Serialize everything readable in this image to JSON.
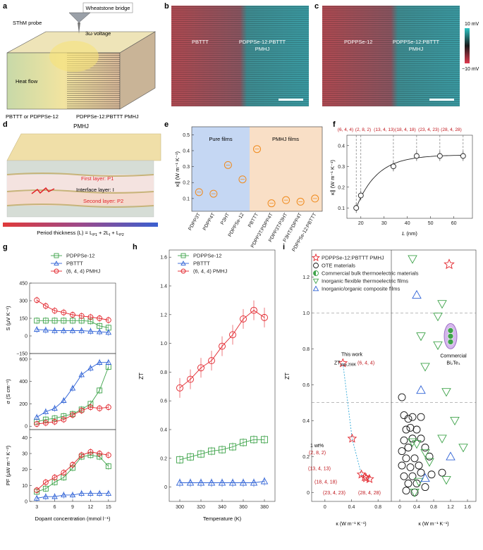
{
  "colors": {
    "green": "#3ea34a",
    "blue": "#2f62d6",
    "red": "#e2232a",
    "orange": "#f08a1c",
    "darkred": "#c0161c",
    "purple": "#a070c8"
  },
  "panels": {
    "a": {
      "label": "a",
      "wheatstone": "Wheatstone bridge",
      "probe": "SThM probe",
      "voltage": "3ω voltage",
      "heat": "Heat flow",
      "left": "PBTTT or PDPPSe-12",
      "right": "PDPPSe-12:PBTTT PMHJ"
    },
    "b": {
      "label": "b",
      "left": "PBTTT",
      "right1": "PDPPSe-12:PBTTT",
      "right2": "PMHJ"
    },
    "c": {
      "label": "c",
      "left": "PDPPSe-12",
      "right1": "PDPPSe-12:PBTTT",
      "right2": "PMHJ"
    },
    "colorbar": {
      "top": "10 mV",
      "bottom": "−10 mV"
    },
    "d": {
      "label": "d",
      "title": "PMHJ",
      "layer1": "First layer: P1",
      "layeri": "Interface layer: I",
      "layer2": "Second layer: P2",
      "period": "Period thickness (L) = L",
      "period_sub1": "P1",
      "period_mid": " + 2L",
      "period_sub2": "I",
      "period_plus": " + L",
      "period_sub3": "P2"
    },
    "e": {
      "label": "e",
      "region1": "Pure films",
      "region2": "PMHJ films",
      "yticks": [
        "0.1",
        "0.2",
        "0.3",
        "0.4",
        "0.5"
      ]
    },
    "f": {
      "label": "f",
      "top_labels": [
        "(6, 4, 4)",
        "(2, 8, 2)",
        "(13, 4, 13)",
        "(18, 4, 18)",
        "(23, 4, 23)",
        "(28, 4, 28)"
      ],
      "xlabel": "L",
      "xunit": " (nm)",
      "xticks": [
        "20",
        "30",
        "40",
        "50",
        "60"
      ],
      "yticks": [
        "0.1",
        "0.2",
        "0.3",
        "0.4"
      ]
    },
    "g": {
      "label": "g",
      "legend": [
        "PDPPSe-12",
        "PBTTT",
        "(6, 4, 4) PMHJ"
      ],
      "xlabel": "Dopant concentration (mmol l⁻¹)",
      "xticks": [
        "3",
        "6",
        "9",
        "12",
        "15"
      ],
      "s_ticks": [
        "450",
        "300",
        "150",
        "0",
        "−150"
      ],
      "sigma_ticks": [
        "600",
        "400",
        "200",
        "0"
      ],
      "pf_ticks": [
        "40",
        "30",
        "20",
        "10",
        "0"
      ]
    },
    "h": {
      "label": "h",
      "legend": [
        "PDPPSe-12",
        "PBTTT",
        "(6, 4, 4) PMHJ"
      ],
      "ylabel": "ZT",
      "xlabel": "Temperature (K)",
      "xticks": [
        "300",
        "320",
        "340",
        "360",
        "380"
      ],
      "yticks": [
        "0",
        "0.2",
        "0.4",
        "0.6",
        "0.8",
        "1.0",
        "1.2",
        "1.4",
        "1.6"
      ]
    },
    "i": {
      "label": "i",
      "legend": [
        "PDPPSe-12:PBTTT PMHJ",
        "OTE materials",
        "Commercial bulk thermoelectric materials",
        "Inorganic flexible thermoelectric films",
        "Inorganic/organic composite films"
      ],
      "ylabel": "ZT",
      "yticks": [
        "0",
        "0.2",
        "0.4",
        "0.6",
        "0.8",
        "1.0",
        "1.2"
      ],
      "xticks_left": [
        "0",
        "0.4",
        "0.8"
      ],
      "xticks_right": [
        "0",
        "0.4",
        "0.8",
        "1.2",
        "1.6"
      ],
      "this_work": "This work",
      "zt_label": "ZT",
      "zt_sub": "max,298K",
      "zt_val": "(6, 4, 4)",
      "wt_label": "1 wt%",
      "wt_val": "(2, 8, 2)",
      "pt_labels": [
        "(13, 4, 13)",
        "(18, 4, 18)",
        "(23, 4, 23)",
        "(28, 4, 28)"
      ],
      "commercial1": "Commercial",
      "commercial2": "Bi₂Te₃"
    }
  },
  "chart_data": [
    {
      "type": "scatter",
      "panel": "e",
      "ylabel": "κ∥ (W m⁻¹ K⁻¹)",
      "categories": [
        "PDPP3T",
        "PDPP4T",
        "P3HT",
        "PDPPSe-12",
        "PBTTT",
        "PDPP3T:PDPP4T",
        "PDPP3T:P3HT",
        "P3HT:PDPP4T",
        "PDPPSe-12:PBTTT"
      ],
      "values": [
        0.14,
        0.13,
        0.31,
        0.22,
        0.41,
        0.07,
        0.09,
        0.08,
        0.1
      ],
      "ylim": [
        0.02,
        0.55
      ]
    },
    {
      "type": "line",
      "panel": "f",
      "ylabel": "κ∥ (W m⁻¹ K⁻¹)",
      "x": [
        18,
        20,
        34,
        44,
        54,
        64
      ],
      "y": [
        0.1,
        0.16,
        0.3,
        0.35,
        0.35,
        0.35
      ],
      "xlim": [
        14,
        68
      ],
      "ylim": [
        0.05,
        0.45
      ]
    },
    {
      "type": "line",
      "panel": "g",
      "ylabel": "S (μV K⁻¹)",
      "x": [
        3,
        4.5,
        6,
        7.5,
        9,
        10.5,
        12,
        13.5,
        15
      ],
      "series": [
        {
          "name": "PDPPSe-12",
          "values": [
            130,
            130,
            130,
            130,
            130,
            130,
            125,
            85,
            70
          ]
        },
        {
          "name": "PBTTT",
          "values": [
            55,
            50,
            45,
            45,
            45,
            45,
            40,
            35,
            30
          ]
        },
        {
          "name": "(6, 4, 4) PMHJ",
          "values": [
            305,
            255,
            215,
            200,
            180,
            170,
            160,
            150,
            135
          ]
        }
      ],
      "ylim": [
        -150,
        450
      ]
    },
    {
      "type": "line",
      "panel": "g",
      "ylabel": "σ (S cm⁻¹)",
      "x": [
        3,
        4.5,
        6,
        7.5,
        9,
        10.5,
        12,
        13.5,
        15
      ],
      "series": [
        {
          "name": "PDPPSe-12",
          "values": [
            40,
            60,
            70,
            90,
            110,
            150,
            200,
            320,
            530
          ]
        },
        {
          "name": "PBTTT",
          "values": [
            80,
            130,
            160,
            230,
            340,
            460,
            520,
            570,
            570
          ]
        },
        {
          "name": "(6, 4, 4) PMHJ",
          "values": [
            20,
            30,
            40,
            60,
            100,
            140,
            170,
            160,
            170
          ]
        }
      ],
      "ylim": [
        -30,
        650
      ]
    },
    {
      "type": "line",
      "panel": "g",
      "ylabel": "PF (μW m⁻¹ K⁻²)",
      "x": [
        3,
        4.5,
        6,
        7.5,
        9,
        10.5,
        12,
        13.5,
        15
      ],
      "series": [
        {
          "name": "PDPPSe-12",
          "values": [
            6,
            8,
            12,
            15,
            21,
            28,
            29,
            28,
            22
          ]
        },
        {
          "name": "PBTTT",
          "values": [
            2,
            3,
            3,
            4,
            4,
            5,
            5,
            5,
            5
          ]
        },
        {
          "name": "(6, 4, 4) PMHJ",
          "values": [
            7,
            12,
            15,
            18,
            23,
            29,
            31,
            30,
            29
          ]
        }
      ],
      "ylim": [
        0,
        45
      ]
    },
    {
      "type": "line",
      "panel": "h",
      "x": [
        300,
        310,
        320,
        330,
        340,
        350,
        360,
        370,
        380
      ],
      "series": [
        {
          "name": "PDPPSe-12",
          "values": [
            0.19,
            0.21,
            0.23,
            0.25,
            0.26,
            0.28,
            0.31,
            0.33,
            0.33
          ]
        },
        {
          "name": "PBTTT",
          "values": [
            0.03,
            0.03,
            0.03,
            0.03,
            0.03,
            0.03,
            0.03,
            0.03,
            0.04
          ]
        },
        {
          "name": "(6, 4, 4) PMHJ",
          "values": [
            0.69,
            0.75,
            0.83,
            0.88,
            0.98,
            1.06,
            1.17,
            1.23,
            1.18
          ]
        }
      ],
      "xlim": [
        290,
        390
      ],
      "ylim": [
        -0.1,
        1.65
      ]
    },
    {
      "type": "scatter",
      "panel": "i",
      "xlim_left": [
        -0.2,
        1.0
      ],
      "xlim_right": [
        -0.2,
        1.8
      ],
      "ylim": [
        -0.05,
        1.35
      ],
      "pmhj": [
        {
          "x": 0.27,
          "y": 0.72
        },
        {
          "x": 0.41,
          "y": 0.3
        },
        {
          "x": 0.55,
          "y": 0.1
        },
        {
          "x": 0.6,
          "y": 0.085
        },
        {
          "x": 0.62,
          "y": 0.08
        },
        {
          "x": 0.67,
          "y": 0.075
        }
      ],
      "ote": [
        {
          "x": 0.05,
          "y": 0.53
        },
        {
          "x": 0.1,
          "y": 0.43
        },
        {
          "x": 0.2,
          "y": 0.41
        },
        {
          "x": 0.3,
          "y": 0.42
        },
        {
          "x": 0.5,
          "y": 0.42
        },
        {
          "x": 0.15,
          "y": 0.35
        },
        {
          "x": 0.25,
          "y": 0.36
        },
        {
          "x": 0.4,
          "y": 0.35
        },
        {
          "x": 0.1,
          "y": 0.29
        },
        {
          "x": 0.3,
          "y": 0.3
        },
        {
          "x": 0.5,
          "y": 0.3
        },
        {
          "x": 0.05,
          "y": 0.23
        },
        {
          "x": 0.2,
          "y": 0.25
        },
        {
          "x": 0.6,
          "y": 0.25
        },
        {
          "x": 0.15,
          "y": 0.19
        },
        {
          "x": 0.35,
          "y": 0.19
        },
        {
          "x": 0.7,
          "y": 0.2
        },
        {
          "x": 0.05,
          "y": 0.15
        },
        {
          "x": 0.25,
          "y": 0.14
        },
        {
          "x": 0.45,
          "y": 0.15
        },
        {
          "x": 0.1,
          "y": 0.09
        },
        {
          "x": 0.3,
          "y": 0.09
        },
        {
          "x": 0.5,
          "y": 0.11
        },
        {
          "x": 0.75,
          "y": 0.1
        },
        {
          "x": 1.0,
          "y": 0.11
        },
        {
          "x": 0.2,
          "y": 0.05
        },
        {
          "x": 0.4,
          "y": 0.05
        },
        {
          "x": 0.6,
          "y": 0.03
        },
        {
          "x": 0.15,
          "y": 0.01
        },
        {
          "x": 0.35,
          "y": 0.0
        }
      ],
      "inorganic_flexible": [
        {
          "x": 0.3,
          "y": 1.3
        },
        {
          "x": 1.0,
          "y": 1.05
        },
        {
          "x": 0.5,
          "y": 0.87
        },
        {
          "x": 0.9,
          "y": 0.82
        },
        {
          "x": 0.9,
          "y": 0.98
        },
        {
          "x": 1.1,
          "y": 0.56
        },
        {
          "x": 1.3,
          "y": 0.4
        },
        {
          "x": 0.6,
          "y": 0.7
        },
        {
          "x": 1.0,
          "y": 0.3
        },
        {
          "x": 1.5,
          "y": 0.25
        },
        {
          "x": 0.4,
          "y": 0.27
        },
        {
          "x": 0.6,
          "y": 0.22
        },
        {
          "x": 0.7,
          "y": 0.17
        },
        {
          "x": 0.3,
          "y": 0.28
        },
        {
          "x": 1.1,
          "y": 0.07
        },
        {
          "x": 0.35,
          "y": 0.0
        },
        {
          "x": 0.45,
          "y": 0.06
        }
      ],
      "composite": [
        {
          "x": 0.4,
          "y": 1.1
        },
        {
          "x": 0.5,
          "y": 0.57
        },
        {
          "x": 0.6,
          "y": 0.08
        },
        {
          "x": 1.2,
          "y": 0.2
        }
      ],
      "commercial_bulk": [
        {
          "x": 1.2,
          "y": 0.87
        }
      ]
    }
  ]
}
